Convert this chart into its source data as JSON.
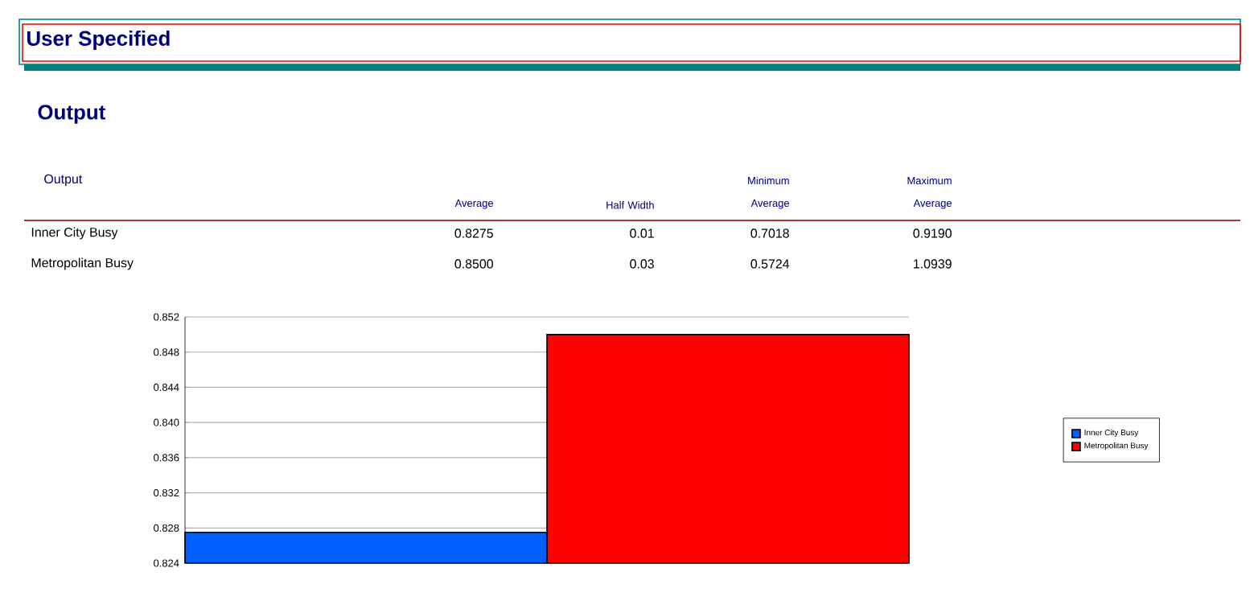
{
  "chart_data": {
    "type": "bar",
    "title": "User Specified",
    "subtitle": "Output",
    "categories": [
      null
    ],
    "series": [
      {
        "name": "Inner City Busy",
        "color": "#0060ff",
        "values": [
          0.8275
        ]
      },
      {
        "name": "Metropolitan Busy",
        "color": "#ff0000",
        "values": [
          0.85
        ]
      }
    ],
    "ylim": [
      0.824,
      0.852
    ],
    "yticks": [
      0.824,
      0.828,
      0.832,
      0.836,
      {
        "value": 0.84,
        "label": "0.840"
      },
      0.844,
      0.848,
      0.852
    ],
    "grid": "y",
    "legend": "right",
    "annotations": [
      "Output",
      "Average",
      "Half Width",
      "Minimum Average",
      "Maximum Average",
      "Inner City Busy",
      "0.8275",
      "0.01",
      "0.7018",
      "0.9190",
      "Metropolitan Busy",
      "0.8500",
      "0.03",
      "0.5724",
      "1.0939"
    ]
  }
}
